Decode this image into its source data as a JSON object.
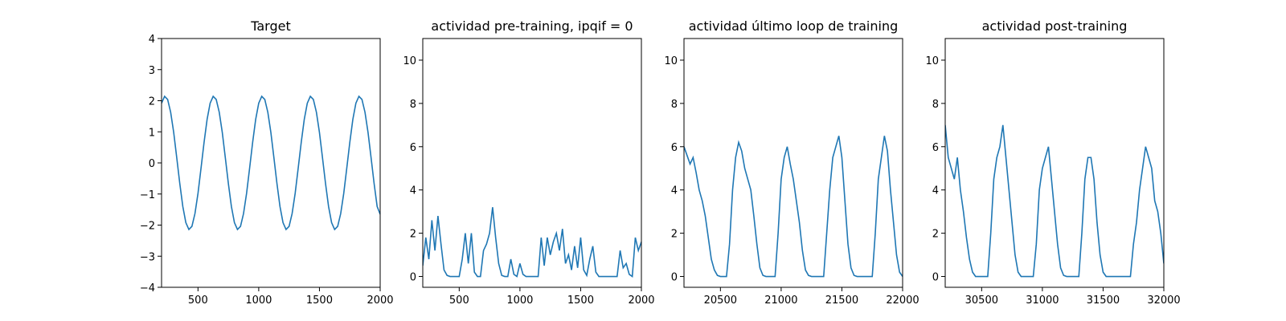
{
  "chart_data": [
    {
      "type": "line",
      "title": "Target",
      "color": "#1f77b4",
      "x": [
        200,
        225,
        250,
        275,
        300,
        325,
        350,
        375,
        400,
        425,
        450,
        475,
        500,
        525,
        550,
        575,
        600,
        625,
        650,
        675,
        700,
        725,
        750,
        775,
        800,
        825,
        850,
        875,
        900,
        925,
        950,
        975,
        1000,
        1025,
        1050,
        1075,
        1100,
        1125,
        1150,
        1175,
        1200,
        1225,
        1250,
        1275,
        1300,
        1325,
        1350,
        1375,
        1400,
        1425,
        1450,
        1475,
        1500,
        1525,
        1550,
        1575,
        1600,
        1625,
        1650,
        1675,
        1700,
        1725,
        1750,
        1775,
        1800,
        1825,
        1850,
        1875,
        1900,
        1925,
        1950,
        1975,
        2000
      ],
      "values": [
        1.92,
        2.14,
        2.04,
        1.63,
        0.98,
        0.17,
        -0.66,
        -1.4,
        -1.92,
        -2.14,
        -2.04,
        -1.63,
        -0.98,
        -0.17,
        0.66,
        1.4,
        1.92,
        2.14,
        2.04,
        1.63,
        0.98,
        0.17,
        -0.66,
        -1.4,
        -1.92,
        -2.14,
        -2.04,
        -1.63,
        -0.98,
        -0.17,
        0.66,
        1.4,
        1.92,
        2.14,
        2.04,
        1.63,
        0.98,
        0.17,
        -0.66,
        -1.4,
        -1.92,
        -2.14,
        -2.04,
        -1.63,
        -0.98,
        -0.17,
        0.66,
        1.4,
        1.92,
        2.14,
        2.04,
        1.63,
        0.98,
        0.17,
        -0.66,
        -1.4,
        -1.92,
        -2.14,
        -2.04,
        -1.63,
        -0.98,
        -0.17,
        0.66,
        1.4,
        1.92,
        2.14,
        2.04,
        1.63,
        0.98,
        0.17,
        -0.66,
        -1.4,
        -1.65
      ],
      "xlim": [
        200,
        2000
      ],
      "xticks": [
        500,
        1000,
        1500,
        2000
      ],
      "ylim": [
        -4,
        4
      ],
      "yticks": [
        {
          "value": -4,
          "label": "−4"
        },
        {
          "value": -3,
          "label": "−3"
        },
        {
          "value": -2,
          "label": "−2"
        },
        {
          "value": -1,
          "label": "−1"
        },
        0,
        1,
        2,
        3,
        4
      ]
    },
    {
      "type": "line",
      "title": "actividad pre-training, ipqif = 0",
      "color": "#1f77b4",
      "x": [
        200,
        225,
        250,
        275,
        300,
        325,
        350,
        375,
        400,
        425,
        450,
        475,
        500,
        525,
        550,
        575,
        600,
        625,
        650,
        675,
        700,
        725,
        750,
        775,
        800,
        825,
        850,
        875,
        900,
        925,
        950,
        975,
        1000,
        1025,
        1050,
        1075,
        1100,
        1125,
        1150,
        1175,
        1200,
        1225,
        1250,
        1275,
        1300,
        1325,
        1350,
        1375,
        1400,
        1425,
        1450,
        1475,
        1500,
        1525,
        1550,
        1575,
        1600,
        1625,
        1650,
        1675,
        1700,
        1725,
        1750,
        1775,
        1800,
        1825,
        1850,
        1875,
        1900,
        1925,
        1950,
        1975,
        2000
      ],
      "values": [
        0.5,
        1.8,
        0.8,
        2.6,
        1.2,
        2.8,
        1.5,
        0.3,
        0.05,
        0,
        0,
        0,
        0,
        0.8,
        2.0,
        0.6,
        2.0,
        0.2,
        0,
        0,
        1.2,
        1.5,
        2.0,
        3.2,
        1.8,
        0.6,
        0.05,
        0,
        0,
        0.8,
        0.1,
        0,
        0.6,
        0.1,
        0,
        0,
        0,
        0,
        0,
        1.8,
        0.5,
        1.8,
        1.0,
        1.6,
        2.0,
        1.2,
        2.2,
        0.6,
        1.0,
        0.3,
        1.4,
        0.4,
        1.8,
        0.3,
        0.05,
        0.8,
        1.4,
        0.2,
        0,
        0,
        0,
        0,
        0,
        0,
        0,
        1.2,
        0.4,
        0.6,
        0.1,
        0,
        1.8,
        1.2,
        1.6
      ],
      "xlim": [
        200,
        2000
      ],
      "xticks": [
        500,
        1000,
        1500,
        2000
      ],
      "ylim": [
        -0.5,
        11
      ],
      "yticks": [
        0,
        2,
        4,
        6,
        8,
        10
      ]
    },
    {
      "type": "line",
      "title": "actividad último loop de training",
      "color": "#1f77b4",
      "x": [
        20200,
        20225,
        20250,
        20275,
        20300,
        20325,
        20350,
        20375,
        20400,
        20425,
        20450,
        20475,
        20500,
        20525,
        20550,
        20575,
        20600,
        20625,
        20650,
        20675,
        20700,
        20725,
        20750,
        20775,
        20800,
        20825,
        20850,
        20875,
        20900,
        20925,
        20950,
        20975,
        21000,
        21025,
        21050,
        21075,
        21100,
        21125,
        21150,
        21175,
        21200,
        21225,
        21250,
        21275,
        21300,
        21325,
        21350,
        21375,
        21400,
        21425,
        21450,
        21475,
        21500,
        21525,
        21550,
        21575,
        21600,
        21625,
        21650,
        21675,
        21700,
        21725,
        21750,
        21775,
        21800,
        21825,
        21850,
        21875,
        21900,
        21925,
        21950,
        21975,
        22000
      ],
      "values": [
        6.0,
        5.6,
        5.2,
        5.5,
        4.8,
        4.0,
        3.5,
        2.8,
        1.8,
        0.8,
        0.3,
        0.05,
        0,
        0,
        0,
        1.5,
        4.0,
        5.5,
        6.2,
        5.8,
        5.0,
        4.5,
        4.0,
        2.8,
        1.5,
        0.4,
        0.05,
        0,
        0,
        0,
        0,
        2.0,
        4.5,
        5.5,
        6.0,
        5.2,
        4.5,
        3.5,
        2.5,
        1.2,
        0.3,
        0.05,
        0,
        0,
        0,
        0,
        0,
        2.0,
        4.0,
        5.5,
        6.0,
        6.5,
        5.5,
        3.5,
        1.5,
        0.4,
        0.05,
        0,
        0,
        0,
        0,
        0,
        0,
        2.0,
        4.5,
        5.5,
        6.5,
        5.8,
        4.0,
        2.5,
        1.0,
        0.2,
        0
      ],
      "xlim": [
        20200,
        22000
      ],
      "xticks": [
        20500,
        21000,
        21500,
        22000
      ],
      "ylim": [
        -0.5,
        11
      ],
      "yticks": [
        0,
        2,
        4,
        6,
        8,
        10
      ]
    },
    {
      "type": "line",
      "title": "actividad post-training",
      "color": "#1f77b4",
      "x": [
        30200,
        30225,
        30250,
        30275,
        30300,
        30325,
        30350,
        30375,
        30400,
        30425,
        30450,
        30475,
        30500,
        30525,
        30550,
        30575,
        30600,
        30625,
        30650,
        30675,
        30700,
        30725,
        30750,
        30775,
        30800,
        30825,
        30850,
        30875,
        30900,
        30925,
        30950,
        30975,
        31000,
        31025,
        31050,
        31075,
        31100,
        31125,
        31150,
        31175,
        31200,
        31225,
        31250,
        31275,
        31300,
        31325,
        31350,
        31375,
        31400,
        31425,
        31450,
        31475,
        31500,
        31525,
        31550,
        31575,
        31600,
        31625,
        31650,
        31675,
        31700,
        31725,
        31750,
        31775,
        31800,
        31825,
        31850,
        31875,
        31900,
        31925,
        31950,
        31975,
        32000
      ],
      "values": [
        7.0,
        5.5,
        5.0,
        4.5,
        5.5,
        4.0,
        3.0,
        1.8,
        0.8,
        0.2,
        0,
        0,
        0,
        0,
        0,
        2.0,
        4.5,
        5.5,
        6.0,
        7.0,
        5.5,
        4.0,
        2.5,
        1.0,
        0.2,
        0,
        0,
        0,
        0,
        0,
        1.5,
        4.0,
        5.0,
        5.5,
        6.0,
        4.5,
        3.0,
        1.5,
        0.4,
        0.05,
        0,
        0,
        0,
        0,
        0,
        2.0,
        4.5,
        5.5,
        5.5,
        4.5,
        2.5,
        1.0,
        0.2,
        0,
        0,
        0,
        0,
        0,
        0,
        0,
        0,
        0,
        1.5,
        2.5,
        4.0,
        5.0,
        6.0,
        5.5,
        5.0,
        3.5,
        3.0,
        2.0,
        0.6
      ],
      "xlim": [
        30200,
        32000
      ],
      "xticks": [
        30500,
        31000,
        31500,
        32000
      ],
      "ylim": [
        -0.5,
        11
      ],
      "yticks": [
        0,
        2,
        4,
        6,
        8,
        10
      ]
    }
  ]
}
